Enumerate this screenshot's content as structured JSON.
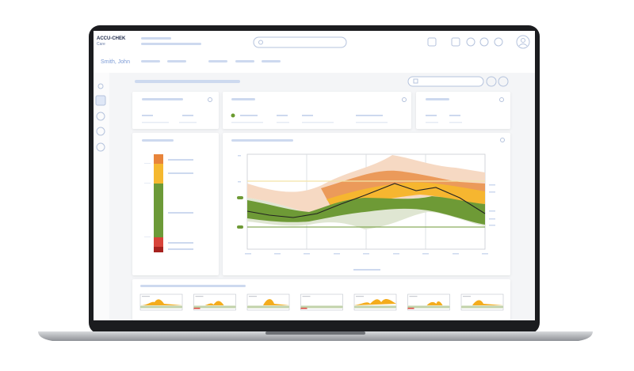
{
  "header": {
    "brand": "ACCU-CHEK",
    "brand_sub": "Care",
    "patient": "Smith, John"
  }
}
